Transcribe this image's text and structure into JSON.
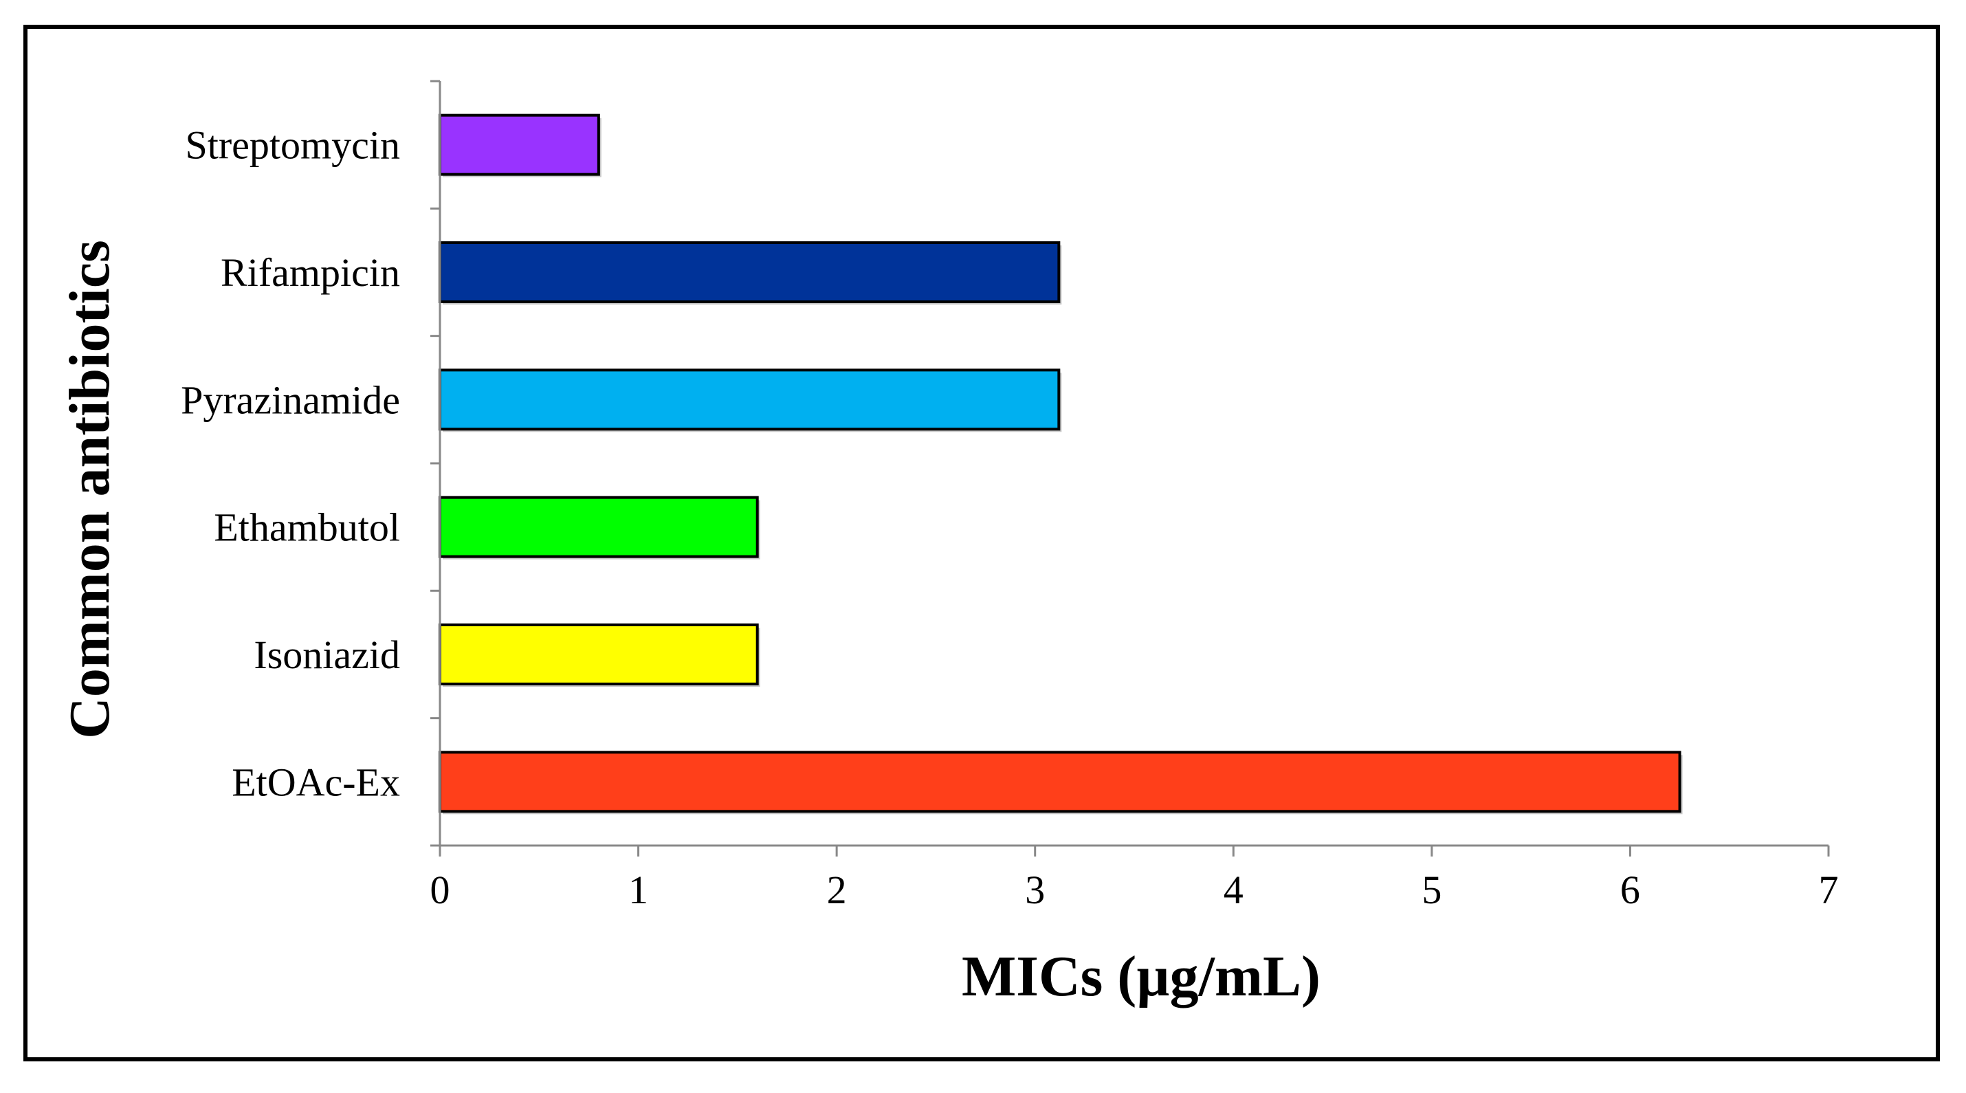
{
  "chart_data": {
    "type": "bar",
    "orientation": "horizontal",
    "categories": [
      "EtOAc-Ex",
      "Isoniazid",
      "Ethambutol",
      "Pyrazinamide",
      "Rifampicin",
      "Streptomycin"
    ],
    "values": [
      6.25,
      1.6,
      1.6,
      3.12,
      3.12,
      0.8
    ],
    "colors": [
      "#ff3f1a",
      "#ffff00",
      "#00ff00",
      "#00b0f0",
      "#003399",
      "#9933ff"
    ],
    "xlabel": "MICs (µg/mL)",
    "ylabel": "Common antibiotics",
    "xlim": [
      0,
      7
    ],
    "xticks": [
      "0",
      "1",
      "2",
      "3",
      "4",
      "5",
      "6",
      "7"
    ],
    "grid": false,
    "legend": "none"
  }
}
